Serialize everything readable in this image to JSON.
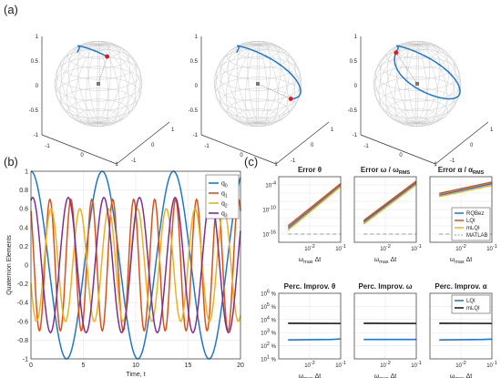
{
  "panel_labels": {
    "a": "(a)",
    "b": "(b)",
    "c": "(c)"
  },
  "colors": {
    "blue": "#1f77c9",
    "orange": "#d95319",
    "yellow": "#edb120",
    "purple": "#7e2f8e",
    "black": "#111111",
    "gray": "#9a9a9a",
    "red": "#e8141c"
  },
  "panel_a": {
    "ticks_z": [
      "-1",
      "-0.5",
      "0",
      "0.5",
      "1"
    ],
    "ticks_x": [
      "-1",
      "0",
      "1"
    ],
    "ticks_y": [
      "-1",
      "0",
      "1"
    ],
    "trajectory_fraction": [
      0.33,
      0.66,
      1.0
    ]
  },
  "chart_data": [
    {
      "id": "quaternion",
      "type": "line",
      "xlabel": "Time, t",
      "ylabel": "Quaternion Elements",
      "xlim": [
        0,
        20
      ],
      "ylim": [
        -1,
        1
      ],
      "xticks": [
        0,
        5,
        10,
        15,
        20
      ],
      "yticks": [
        -1,
        -0.8,
        -0.6,
        -0.4,
        -0.2,
        0,
        0.2,
        0.4,
        0.6,
        0.8,
        1
      ],
      "legend_position": "top-right",
      "series": [
        {
          "name": "q",
          "sub": "0",
          "color": "#1f77c9",
          "amp": 1.0,
          "period": 6.8,
          "phase": 0.0
        },
        {
          "name": "q",
          "sub": "1",
          "color": "#d95319",
          "amp": 0.7,
          "period": 2.0,
          "phase": 0.6
        },
        {
          "name": "q",
          "sub": "2",
          "color": "#edb120",
          "amp": 0.6,
          "period": 2.75,
          "phase": 1.9
        },
        {
          "name": "q",
          "sub": "3",
          "color": "#7e2f8e",
          "amp": 0.72,
          "period": 3.4,
          "phase": -0.3
        }
      ]
    },
    {
      "id": "error_theta",
      "type": "line",
      "title": "Error θ",
      "xlabel": "ω_max Δt",
      "yscale": "log",
      "ylim": [
        1e-18,
        0.01
      ],
      "ytick_labels": [
        "10^-4",
        "10^-10",
        "10^-16"
      ],
      "ytick_values": [
        0.0001,
        1e-10,
        1e-16
      ],
      "xtick_labels": [
        "10^-2",
        "10^-1"
      ],
      "series": [
        {
          "name": "RQBez",
          "color": "#1f77c9",
          "x": [
            0.002,
            0.1
          ],
          "y": [
            3e-15,
            8e-05
          ]
        },
        {
          "name": "LQI",
          "color": "#d95319",
          "x": [
            0.002,
            0.1
          ],
          "y": [
            1e-14,
            0.0002
          ]
        },
        {
          "name": "mLQI",
          "color": "#edb120",
          "x": [
            0.002,
            0.1
          ],
          "y": [
            1e-15,
            4e-05
          ]
        },
        {
          "name": "MATLAB",
          "color": "#9a9a9a",
          "dashed": true,
          "x": [
            0.002,
            0.1
          ],
          "y": [
            1e-16,
            1e-16
          ]
        }
      ]
    },
    {
      "id": "error_omega",
      "type": "line",
      "title": "Error ω / ω_RMS",
      "xlabel": "ω_max Δt",
      "yscale": "log",
      "ylim": [
        1e-18,
        0.01
      ],
      "xtick_labels": [
        "10^-2",
        "10^-1"
      ],
      "series": [
        {
          "name": "RQBez",
          "color": "#1f77c9",
          "x": [
            0.002,
            0.1
          ],
          "y": [
            8e-14,
            0.0003
          ]
        },
        {
          "name": "LQI",
          "color": "#d95319",
          "x": [
            0.002,
            0.1
          ],
          "y": [
            2e-13,
            0.0008
          ]
        },
        {
          "name": "mLQI",
          "color": "#edb120",
          "x": [
            0.002,
            0.1
          ],
          "y": [
            3e-14,
            0.00012
          ]
        },
        {
          "name": "MATLAB",
          "color": "#9a9a9a",
          "dashed": true,
          "x": [
            0.002,
            0.1
          ],
          "y": [
            1e-16,
            1e-16
          ]
        }
      ]
    },
    {
      "id": "error_alpha",
      "type": "line",
      "title": "Error α / α_RMS",
      "xlabel": "ω_max Δt",
      "yscale": "log",
      "ylim": [
        1e-18,
        0.01
      ],
      "xtick_labels": [
        "10^-2",
        "10^-1"
      ],
      "legend_position": "bottom-right",
      "legend": [
        "RQBez",
        "LQI",
        "mLQI",
        "MATLAB"
      ],
      "series": [
        {
          "name": "RQBez",
          "color": "#1f77c9",
          "x": [
            0.002,
            0.1
          ],
          "y": [
            3e-07,
            0.0002
          ]
        },
        {
          "name": "LQI",
          "color": "#d95319",
          "x": [
            0.002,
            0.1
          ],
          "y": [
            8e-07,
            0.0005
          ]
        },
        {
          "name": "mLQI",
          "color": "#edb120",
          "x": [
            0.002,
            0.1
          ],
          "y": [
            1.5e-07,
            8e-05
          ]
        },
        {
          "name": "MATLAB",
          "color": "#9a9a9a",
          "dashed": true,
          "x": [
            0.002,
            0.1
          ],
          "y": [
            1e-16,
            1e-16
          ]
        }
      ]
    },
    {
      "id": "improv_theta",
      "type": "line",
      "title": "Perc. Improv. θ",
      "xlabel": "ω_max Δt",
      "yscale": "log",
      "ylim": [
        10,
        1000000.0
      ],
      "ytick_labels": [
        "10^6 %",
        "10^5 %",
        "10^4 %",
        "10^3 %",
        "10^2 %",
        "10^1 %"
      ],
      "ytick_values": [
        1000000.0,
        100000.0,
        10000.0,
        1000.0,
        100.0,
        10
      ],
      "xtick_labels": [
        "10^-2",
        "10^-1"
      ],
      "series": [
        {
          "name": "LQI",
          "color": "#1f77c9",
          "x": [
            0.002,
            0.05,
            0.1
          ],
          "y": [
            280,
            300,
            330
          ]
        },
        {
          "name": "mLQI",
          "color": "#111111",
          "x": [
            0.002,
            0.1
          ],
          "y": [
            5200,
            5000
          ]
        }
      ]
    },
    {
      "id": "improv_omega",
      "type": "line",
      "title": "Perc. Improv. ω",
      "xlabel": "ω_max Δt",
      "yscale": "log",
      "ylim": [
        10,
        1000000.0
      ],
      "xtick_labels": [
        "10^-2",
        "10^-1"
      ],
      "series": [
        {
          "name": "LQI",
          "color": "#1f77c9",
          "x": [
            0.002,
            0.1
          ],
          "y": [
            300,
            300
          ]
        },
        {
          "name": "mLQI",
          "color": "#111111",
          "x": [
            0.002,
            0.1
          ],
          "y": [
            5200,
            5000
          ]
        }
      ]
    },
    {
      "id": "improv_alpha",
      "type": "line",
      "title": "Perc. Improv. α",
      "xlabel": "ω_max Δt",
      "yscale": "log",
      "ylim": [
        10,
        1000000.0
      ],
      "xtick_labels": [
        "10^-2",
        "10^-1"
      ],
      "legend_position": "top-right",
      "legend": [
        "LQI",
        "mLQI"
      ],
      "series": [
        {
          "name": "LQI",
          "color": "#1f77c9",
          "x": [
            0.002,
            0.05,
            0.1
          ],
          "y": [
            280,
            300,
            320
          ]
        },
        {
          "name": "mLQI",
          "color": "#111111",
          "x": [
            0.002,
            0.1
          ],
          "y": [
            5200,
            5000
          ]
        }
      ]
    }
  ]
}
